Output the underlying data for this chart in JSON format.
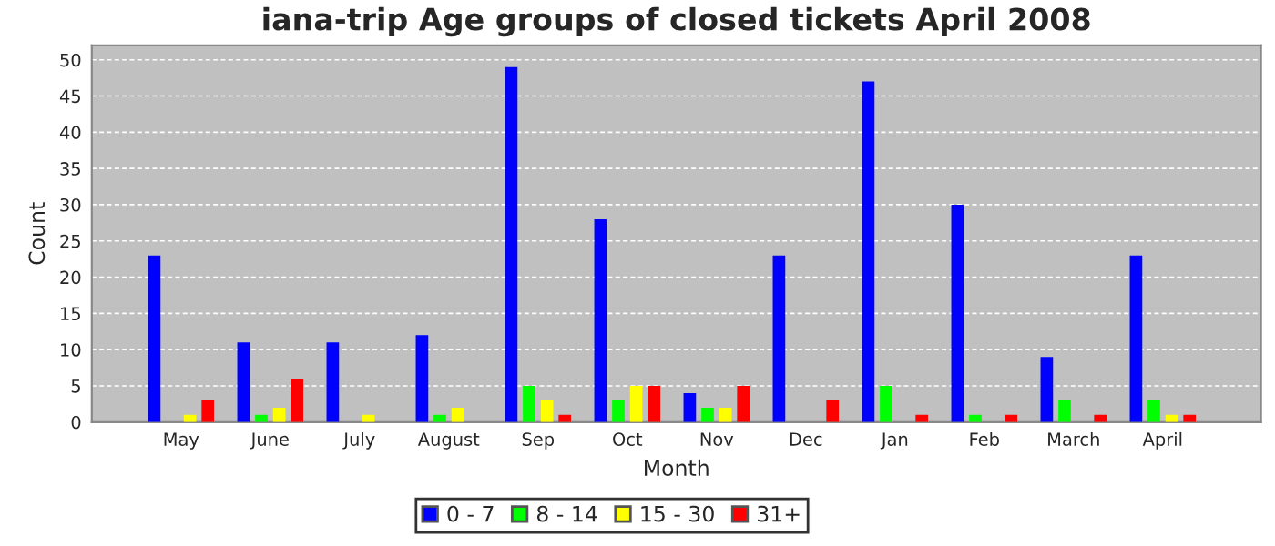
{
  "chart_data": {
    "type": "bar",
    "title": "iana-trip Age groups of closed tickets April 2008",
    "xlabel": "Month",
    "ylabel": "Count",
    "categories": [
      "May",
      "June",
      "July",
      "August",
      "Sep",
      "Oct",
      "Nov",
      "Dec",
      "Jan",
      "Feb",
      "March",
      "April"
    ],
    "series": [
      {
        "name": "0 - 7",
        "color": "#0000ff",
        "values": [
          23,
          11,
          11,
          12,
          49,
          28,
          4,
          23,
          47,
          30,
          9,
          23
        ]
      },
      {
        "name": "8 - 14",
        "color": "#00ff00",
        "values": [
          0,
          1,
          0,
          1,
          5,
          3,
          2,
          0,
          5,
          1,
          3,
          3
        ]
      },
      {
        "name": "15 - 30",
        "color": "#ffff00",
        "values": [
          1,
          2,
          1,
          2,
          3,
          5,
          2,
          0,
          0,
          0,
          0,
          1
        ]
      },
      {
        "name": "31+",
        "color": "#ff0000",
        "values": [
          3,
          6,
          0,
          0,
          1,
          5,
          5,
          3,
          1,
          1,
          1,
          1
        ]
      }
    ],
    "ylim": [
      0,
      52
    ],
    "yticks": [
      0,
      5,
      10,
      15,
      20,
      25,
      30,
      35,
      40,
      45,
      50
    ],
    "grid": "y",
    "legend": "bottom"
  }
}
